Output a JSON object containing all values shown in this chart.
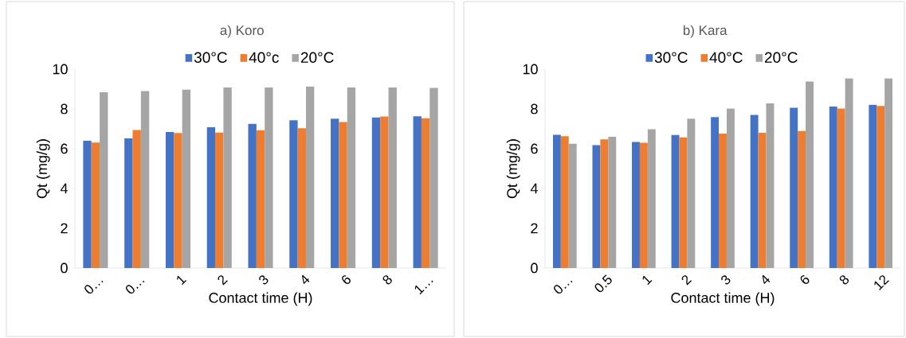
{
  "chart_data": [
    {
      "type": "bar",
      "title": "a) Koro",
      "xlabel": "Contact time (H)",
      "ylabel": "Qt (mg/g)",
      "categories": [
        "0…",
        "0…",
        "1",
        "2",
        "3",
        "4",
        "6",
        "8",
        "1…"
      ],
      "series": [
        {
          "name": "30°C",
          "color": "#4472c4",
          "values": [
            6.4,
            6.52,
            6.84,
            7.08,
            7.25,
            7.43,
            7.51,
            7.57,
            7.63
          ]
        },
        {
          "name": "40°c",
          "color": "#ed7d31",
          "values": [
            6.31,
            6.94,
            6.79,
            6.81,
            6.93,
            7.03,
            7.34,
            7.62,
            7.53
          ]
        },
        {
          "name": "20°C",
          "color": "#a5a5a5",
          "values": [
            8.84,
            8.9,
            8.97,
            9.08,
            9.08,
            9.13,
            9.08,
            9.08,
            9.06
          ]
        }
      ],
      "ylim": [
        0,
        10
      ],
      "yticks": [
        0,
        2,
        4,
        6,
        8,
        10
      ],
      "legend": "top"
    },
    {
      "type": "bar",
      "title": "b) Kara",
      "xlabel": "Contact time (H)",
      "ylabel": "Qt (mg/g)",
      "categories": [
        "0…",
        "0.5",
        "1",
        "2",
        "3",
        "4",
        "6",
        "8",
        "12"
      ],
      "series": [
        {
          "name": "30°C",
          "color": "#4472c4",
          "values": [
            6.7,
            6.18,
            6.34,
            6.69,
            7.59,
            7.7,
            8.06,
            8.12,
            8.21
          ]
        },
        {
          "name": "40°C",
          "color": "#ed7d31",
          "values": [
            6.63,
            6.47,
            6.3,
            6.57,
            6.76,
            6.8,
            6.89,
            8.02,
            8.15
          ]
        },
        {
          "name": "20°C",
          "color": "#a5a5a5",
          "values": [
            6.25,
            6.6,
            6.98,
            7.51,
            8.02,
            8.28,
            9.38,
            9.54,
            9.54
          ]
        }
      ],
      "ylim": [
        0,
        10
      ],
      "yticks": [
        0,
        2,
        4,
        6,
        8,
        10
      ],
      "legend": "top"
    }
  ]
}
